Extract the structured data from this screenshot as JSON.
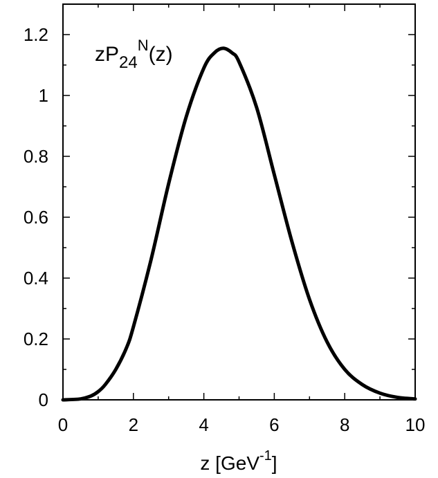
{
  "chart_data": {
    "type": "line",
    "title": "",
    "annotation": {
      "main": "zP",
      "sub": "24",
      "sup": "N",
      "tail": "(z)"
    },
    "xlabel": {
      "main": "z [GeV",
      "sup": "-1",
      "tail": "]"
    },
    "ylabel": "",
    "xlim": [
      0,
      10
    ],
    "ylim": [
      0,
      1.3
    ],
    "x_ticks": [
      0,
      2,
      4,
      6,
      8,
      10
    ],
    "x_tick_labels": [
      "0",
      "2",
      "4",
      "6",
      "8",
      "10"
    ],
    "y_ticks": [
      0,
      0.2,
      0.4,
      0.6,
      0.8,
      1,
      1.2
    ],
    "y_tick_labels": [
      "0",
      "0.2",
      "0.4",
      "0.6",
      "0.8",
      "1",
      "1.2"
    ],
    "grid": false,
    "series": [
      {
        "color": "#000000",
        "x": [
          0,
          0.5,
          0.8,
          1.0,
          1.2,
          1.5,
          1.8,
          2.0,
          2.5,
          3.0,
          3.5,
          4.0,
          4.3,
          4.55,
          4.8,
          5.0,
          5.5,
          6.0,
          6.5,
          7.0,
          7.5,
          8.0,
          8.5,
          9.0,
          9.5,
          10.0
        ],
        "y": [
          0,
          0.003,
          0.013,
          0.027,
          0.05,
          0.1,
          0.17,
          0.24,
          0.46,
          0.71,
          0.93,
          1.09,
          1.14,
          1.155,
          1.14,
          1.11,
          0.96,
          0.74,
          0.52,
          0.33,
          0.19,
          0.1,
          0.05,
          0.022,
          0.008,
          0.003
        ]
      }
    ]
  }
}
